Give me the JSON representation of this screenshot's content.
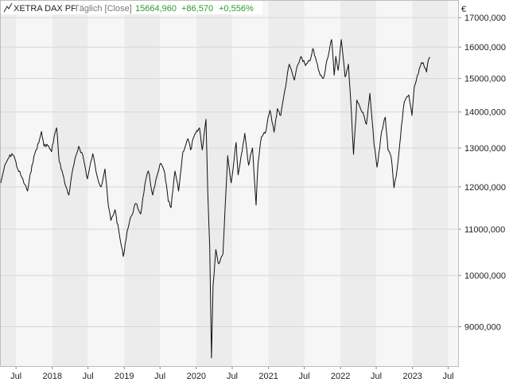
{
  "header": {
    "instrument": "XETRA DAX PF",
    "interval": "Täglich [Close]",
    "last": "15664,960",
    "change_abs": "+86,570",
    "change_pct": "+0,556%"
  },
  "icon": "line-chart-icon",
  "colors": {
    "line": "#111111",
    "band_light": "#f6f6f6",
    "band_dark": "#ececec",
    "gridline": "#d6d6d6",
    "positive": "#2a9d2a",
    "muted": "#777777"
  },
  "chart_data": {
    "type": "line",
    "title": "XETRA DAX PF",
    "currency": "€",
    "y_scale": "log",
    "ylim": [
      8300,
      17600
    ],
    "xlim": [
      "2017-04-15",
      "2023-08-20"
    ],
    "grid": true,
    "y_ticks": [
      9000,
      10000,
      11000,
      12000,
      13000,
      14000,
      15000,
      16000,
      17000
    ],
    "y_tick_labels": [
      "9000,000",
      "10000,000",
      "11000,000",
      "12000,000",
      "13000,000",
      "14000,000",
      "15000,000",
      "16000,000",
      "17000,000"
    ],
    "x_ticks": [
      {
        "date": "2017-07-01",
        "label": "Jul"
      },
      {
        "date": "2018-01-01",
        "label": "2018"
      },
      {
        "date": "2018-07-01",
        "label": "Jul"
      },
      {
        "date": "2019-01-01",
        "label": "2019"
      },
      {
        "date": "2019-07-01",
        "label": "Jul"
      },
      {
        "date": "2020-01-01",
        "label": "2020"
      },
      {
        "date": "2020-07-01",
        "label": "Jul"
      },
      {
        "date": "2021-01-01",
        "label": "2021"
      },
      {
        "date": "2021-07-01",
        "label": "Jul"
      },
      {
        "date": "2022-01-01",
        "label": "2022"
      },
      {
        "date": "2022-07-01",
        "label": "Jul"
      },
      {
        "date": "2023-01-01",
        "label": "2023"
      },
      {
        "date": "2023-07-01",
        "label": "Jul"
      }
    ],
    "series": [
      {
        "name": "XETRA DAX PF",
        "points": [
          [
            "2017-04-15",
            12100
          ],
          [
            "2017-05-01",
            12450
          ],
          [
            "2017-05-20",
            12700
          ],
          [
            "2017-06-10",
            12850
          ],
          [
            "2017-06-20",
            12800
          ],
          [
            "2017-07-10",
            12450
          ],
          [
            "2017-07-25",
            12300
          ],
          [
            "2017-08-15",
            12050
          ],
          [
            "2017-08-29",
            11900
          ],
          [
            "2017-09-20",
            12550
          ],
          [
            "2017-10-10",
            12950
          ],
          [
            "2017-10-25",
            13150
          ],
          [
            "2017-11-07",
            13450
          ],
          [
            "2017-11-20",
            13050
          ],
          [
            "2017-12-05",
            13100
          ],
          [
            "2017-12-28",
            12900
          ],
          [
            "2018-01-10",
            13300
          ],
          [
            "2018-01-23",
            13550
          ],
          [
            "2018-02-05",
            12650
          ],
          [
            "2018-02-20",
            12400
          ],
          [
            "2018-03-05",
            12100
          ],
          [
            "2018-03-26",
            11800
          ],
          [
            "2018-04-15",
            12450
          ],
          [
            "2018-05-15",
            13050
          ],
          [
            "2018-06-05",
            12800
          ],
          [
            "2018-06-28",
            12200
          ],
          [
            "2018-07-25",
            12850
          ],
          [
            "2018-08-15",
            12300
          ],
          [
            "2018-09-05",
            12000
          ],
          [
            "2018-09-25",
            12450
          ],
          [
            "2018-10-12",
            11550
          ],
          [
            "2018-10-25",
            11200
          ],
          [
            "2018-11-15",
            11450
          ],
          [
            "2018-12-10",
            10800
          ],
          [
            "2018-12-27",
            10400
          ],
          [
            "2019-01-15",
            10950
          ],
          [
            "2019-02-05",
            11300
          ],
          [
            "2019-03-01",
            11600
          ],
          [
            "2019-03-25",
            11350
          ],
          [
            "2019-04-15",
            12050
          ],
          [
            "2019-05-03",
            12400
          ],
          [
            "2019-05-25",
            11800
          ],
          [
            "2019-06-20",
            12350
          ],
          [
            "2019-07-05",
            12600
          ],
          [
            "2019-07-25",
            12350
          ],
          [
            "2019-08-12",
            11650
          ],
          [
            "2019-08-26",
            11500
          ],
          [
            "2019-09-15",
            12400
          ],
          [
            "2019-10-03",
            11900
          ],
          [
            "2019-10-25",
            12900
          ],
          [
            "2019-11-20",
            13250
          ],
          [
            "2019-12-03",
            12950
          ],
          [
            "2019-12-20",
            13300
          ],
          [
            "2020-01-17",
            13550
          ],
          [
            "2020-01-31",
            12950
          ],
          [
            "2020-02-19",
            13790
          ],
          [
            "2020-02-28",
            11900
          ],
          [
            "2020-03-09",
            10600
          ],
          [
            "2020-03-18",
            8440
          ],
          [
            "2020-03-26",
            9800
          ],
          [
            "2020-04-09",
            10550
          ],
          [
            "2020-04-21",
            10250
          ],
          [
            "2020-05-15",
            10450
          ],
          [
            "2020-05-27",
            11600
          ],
          [
            "2020-06-08",
            12800
          ],
          [
            "2020-06-26",
            12100
          ],
          [
            "2020-07-21",
            13150
          ],
          [
            "2020-07-31",
            12300
          ],
          [
            "2020-08-25",
            13100
          ],
          [
            "2020-09-03",
            13400
          ],
          [
            "2020-09-22",
            12550
          ],
          [
            "2020-10-12",
            13000
          ],
          [
            "2020-10-30",
            11560
          ],
          [
            "2020-11-09",
            12600
          ],
          [
            "2020-11-26",
            13300
          ],
          [
            "2020-12-15",
            13400
          ],
          [
            "2021-01-08",
            14050
          ],
          [
            "2021-01-29",
            13430
          ],
          [
            "2021-02-15",
            14100
          ],
          [
            "2021-03-04",
            13900
          ],
          [
            "2021-03-25",
            14650
          ],
          [
            "2021-04-16",
            15450
          ],
          [
            "2021-05-12",
            14950
          ],
          [
            "2021-05-31",
            15450
          ],
          [
            "2021-06-15",
            15700
          ],
          [
            "2021-07-08",
            15400
          ],
          [
            "2021-07-30",
            15550
          ],
          [
            "2021-08-13",
            15950
          ],
          [
            "2021-09-20",
            15100
          ],
          [
            "2021-10-06",
            15000
          ],
          [
            "2021-10-25",
            15600
          ],
          [
            "2021-11-17",
            16250
          ],
          [
            "2021-11-30",
            15100
          ],
          [
            "2021-12-08",
            15700
          ],
          [
            "2021-12-20",
            15250
          ],
          [
            "2022-01-05",
            16250
          ],
          [
            "2022-01-24",
            15050
          ],
          [
            "2022-02-10",
            15450
          ],
          [
            "2022-02-24",
            14100
          ],
          [
            "2022-03-08",
            12830
          ],
          [
            "2022-03-25",
            14350
          ],
          [
            "2022-04-12",
            14100
          ],
          [
            "2022-04-29",
            13900
          ],
          [
            "2022-05-12",
            13650
          ],
          [
            "2022-05-30",
            14550
          ],
          [
            "2022-06-20",
            13100
          ],
          [
            "2022-07-05",
            12500
          ],
          [
            "2022-07-28",
            13450
          ],
          [
            "2022-08-16",
            13850
          ],
          [
            "2022-08-30",
            12950
          ],
          [
            "2022-09-15",
            12750
          ],
          [
            "2022-09-29",
            11980
          ],
          [
            "2022-10-15",
            12450
          ],
          [
            "2022-11-01",
            13300
          ],
          [
            "2022-11-20",
            14300
          ],
          [
            "2022-12-13",
            14500
          ],
          [
            "2022-12-29",
            13900
          ],
          [
            "2023-01-10",
            14750
          ],
          [
            "2023-01-31",
            15150
          ],
          [
            "2023-02-15",
            15500
          ],
          [
            "2023-02-28",
            15400
          ],
          [
            "2023-03-13",
            15200
          ],
          [
            "2023-03-23",
            15600
          ],
          [
            "2023-03-31",
            15665
          ]
        ]
      }
    ]
  }
}
